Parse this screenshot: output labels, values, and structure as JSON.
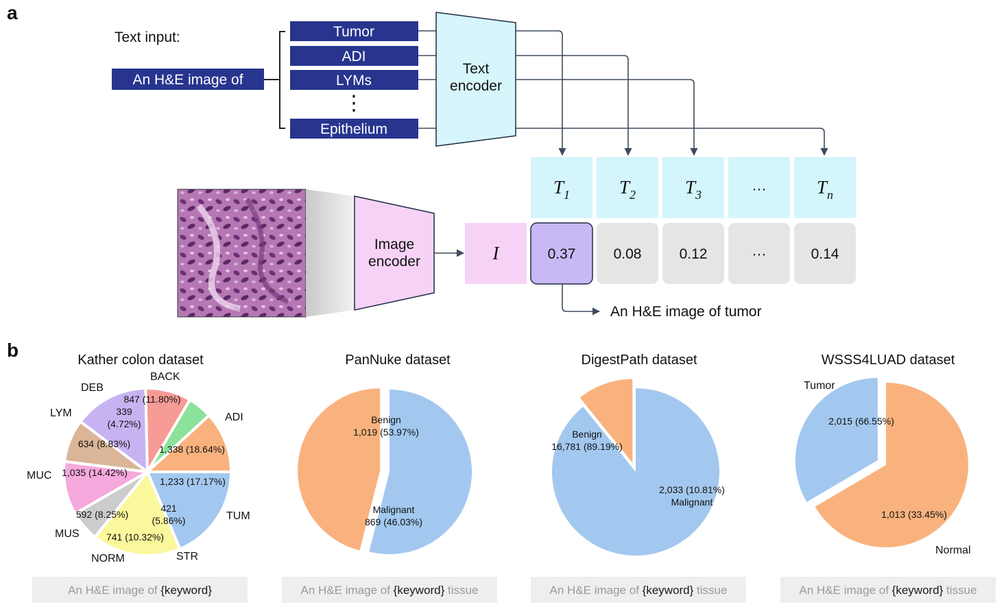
{
  "panel_a": {
    "letter": "a",
    "text_input_label": "Text input:",
    "prefix": "An H&E image of",
    "classes": [
      "Tumor",
      "ADI",
      "LYMs",
      "Epithelium"
    ],
    "ellipsis": "⋮",
    "text_encoder": [
      "Text",
      "encoder"
    ],
    "image_encoder": [
      "Image",
      "encoder"
    ],
    "image_token": "I",
    "text_tokens": [
      {
        "base": "T",
        "sub": "1"
      },
      {
        "base": "T",
        "sub": "2"
      },
      {
        "base": "T",
        "sub": "3"
      },
      {
        "base": "···",
        "sub": ""
      },
      {
        "base": "T",
        "sub": "n"
      }
    ],
    "similarities": [
      "0.37",
      "0.08",
      "0.12",
      "···",
      "0.14"
    ],
    "result": "An H&E image of tumor",
    "colors": {
      "class_box": "#27358f",
      "text_encoder": "#d6f6fb",
      "image_encoder": "#f6d2f6",
      "token_cell": "#d3f5fb",
      "sim_cell": "#e5e5e5",
      "sim_highlight": "#c8b8f5",
      "arrow": "#3f4a5c"
    }
  },
  "panel_b": {
    "letter": "b",
    "prompt_prefix": "An H&E image of ",
    "prompt_keyword": "{keyword}",
    "prompt_suffix": " tissue"
  },
  "chart_data": [
    {
      "type": "pie",
      "title": "Kather colon dataset",
      "prompt_suffix": "",
      "slices": [
        {
          "name": "ADI",
          "value": 1338,
          "label": [
            "1,338 (18.64%)"
          ],
          "color": "#a3c8ef",
          "explode": 0
        },
        {
          "name": "TUM",
          "value": 1233,
          "label": [
            "1,233 (17.17%)"
          ],
          "color": "#fbf79c",
          "explode": 0
        },
        {
          "name": "STR",
          "value": 421,
          "label": [
            "421",
            "(5.86%)"
          ],
          "color": "#cccccc",
          "explode": 0
        },
        {
          "name": "NORM",
          "value": 741,
          "label": [
            "741 (10.32%)"
          ],
          "color": "#f5a9dd",
          "explode": 0
        },
        {
          "name": "MUS",
          "value": 592,
          "label": [
            "592 (8.25%)"
          ],
          "color": "#dbb597",
          "explode": 0
        },
        {
          "name": "MUC",
          "value": 1035,
          "label": [
            "1,035 (14.42%)"
          ],
          "color": "#c7b3f2",
          "explode": 0
        },
        {
          "name": "LYM",
          "value": 634,
          "label": [
            "634 (8.83%)"
          ],
          "color": "#f69b96",
          "explode": 0
        },
        {
          "name": "DEB",
          "value": 339,
          "label": [
            "339",
            "(4.72%)"
          ],
          "color": "#8ce29a",
          "explode": 0
        },
        {
          "name": "BACK",
          "value": 847,
          "label": [
            "847 (11.80%)"
          ],
          "color": "#f9b27e",
          "explode": 0
        }
      ]
    },
    {
      "type": "pie",
      "title": "PanNuke dataset",
      "prompt_suffix": " tissue",
      "slices": [
        {
          "name": "Benign",
          "value": 1019,
          "label": [
            "Benign",
            "1,019 (53.97%)"
          ],
          "color": "#a3c8ef",
          "explode": 0
        },
        {
          "name": "Malignant",
          "value": 869,
          "label": [
            "Malignant",
            "869 (46.03%)"
          ],
          "color": "#f9b27e",
          "explode": 1
        }
      ]
    },
    {
      "type": "pie",
      "title": "DigestPath dataset",
      "prompt_suffix": " tissue",
      "slices": [
        {
          "name": "Benign",
          "value": 16781,
          "label": [
            "Benign",
            "16,781 (89.19%)"
          ],
          "color": "#a3c8ef",
          "explode": 0
        },
        {
          "name": "Malignant",
          "value": 2033,
          "label": [
            "2,033 (10.81%)",
            "Malignant"
          ],
          "color": "#f9b27e",
          "explode": 1
        }
      ]
    },
    {
      "type": "pie",
      "title": "WSSS4LUAD dataset",
      "prompt_suffix": " tissue",
      "slices": [
        {
          "name": "Tumor",
          "value": 2015,
          "label": [
            "2,015 (66.55%)"
          ],
          "color": "#f9b27e",
          "explode": 0
        },
        {
          "name": "Normal",
          "value": 1013,
          "label": [
            "1,013 (33.45%)"
          ],
          "color": "#a3c8ef",
          "explode": 1
        }
      ]
    }
  ]
}
